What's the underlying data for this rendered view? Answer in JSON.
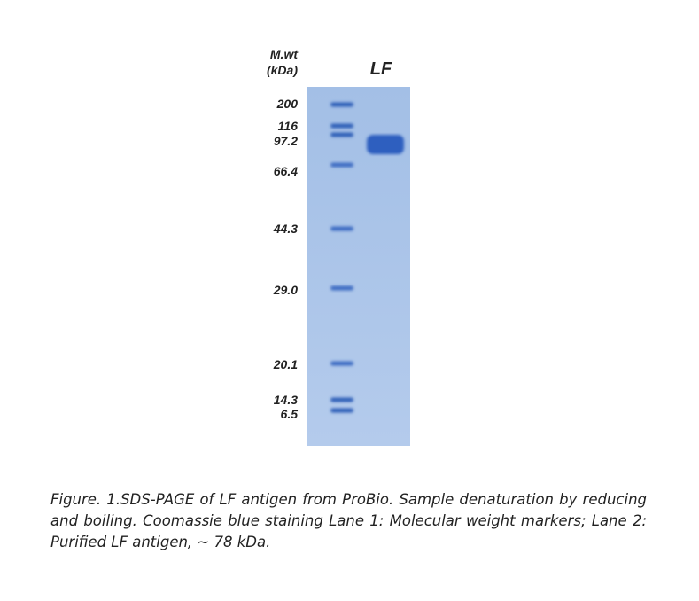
{
  "figure": {
    "axis_label": [
      "M.wt",
      "(kDa)"
    ],
    "lane_label": "LF",
    "markers": [
      "200",
      "116",
      "97.2",
      "66.4",
      "44.3",
      "29.0",
      "20.1",
      "14.3",
      "6.5"
    ],
    "caption": "Figure. 1.SDS-PAGE of LF antigen from ProBio. Sample denaturation by reducing and boiling. Coomassie blue staining Lane 1: Molecular weight markers; Lane 2: Purified LF antigen, ~ 78 kDa."
  }
}
